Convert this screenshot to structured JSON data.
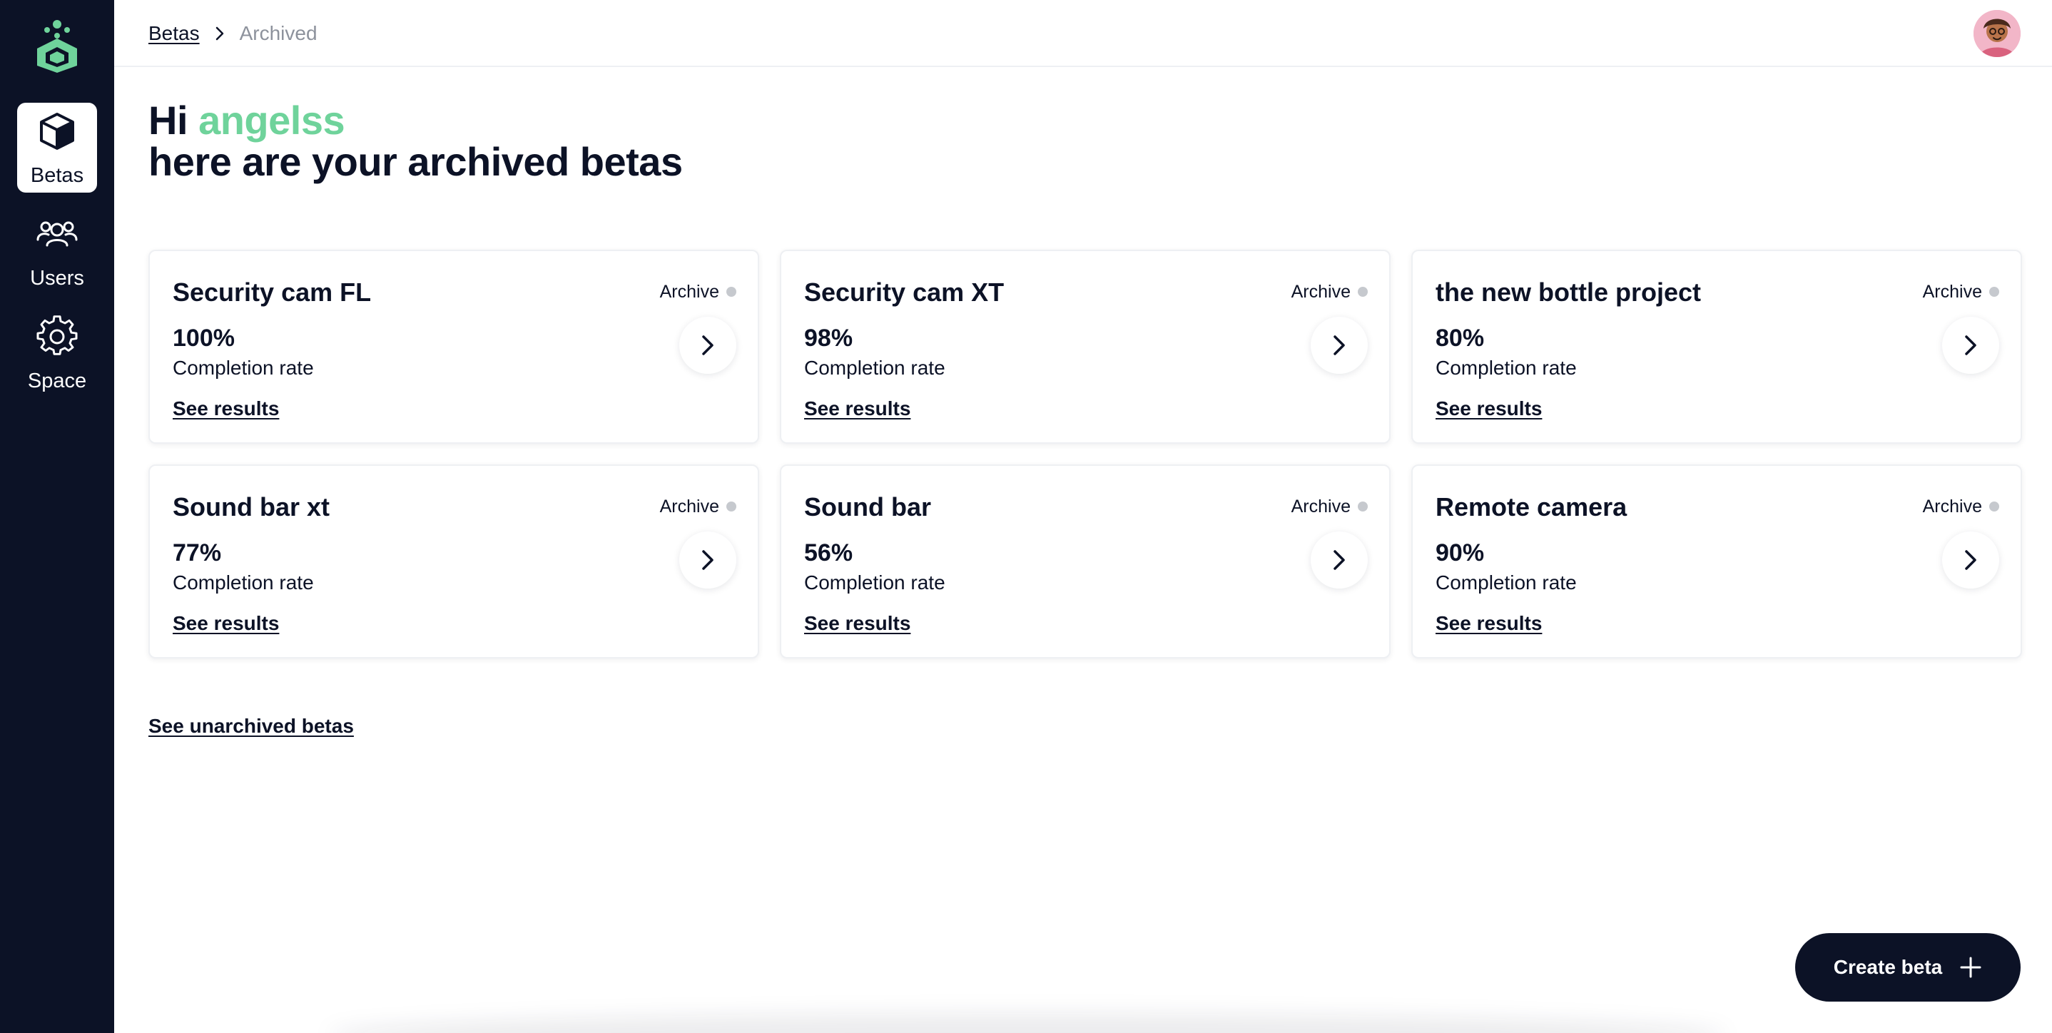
{
  "nav": {
    "items": [
      {
        "label": "Betas",
        "icon": "cube-icon",
        "active": true
      },
      {
        "label": "Users",
        "icon": "users-icon",
        "active": false
      },
      {
        "label": "Space",
        "icon": "gear-icon",
        "active": false
      }
    ]
  },
  "breadcrumb": {
    "root": "Betas",
    "current": "Archived"
  },
  "greeting": {
    "hi": "Hi",
    "username": "angelss",
    "subtitle": "here are your archived betas"
  },
  "cards": [
    {
      "title": "Security cam FL",
      "status": "Archive",
      "rate": "100%",
      "rate_label": "Completion rate",
      "link": "See results"
    },
    {
      "title": "Security cam XT",
      "status": "Archive",
      "rate": "98%",
      "rate_label": "Completion rate",
      "link": "See results"
    },
    {
      "title": "the new bottle project",
      "status": "Archive",
      "rate": "80%",
      "rate_label": "Completion rate",
      "link": "See results"
    },
    {
      "title": "Sound bar xt",
      "status": "Archive",
      "rate": "77%",
      "rate_label": "Completion rate",
      "link": "See results"
    },
    {
      "title": "Sound bar",
      "status": "Archive",
      "rate": "56%",
      "rate_label": "Completion rate",
      "link": "See results"
    },
    {
      "title": "Remote camera",
      "status": "Archive",
      "rate": "90%",
      "rate_label": "Completion rate",
      "link": "See results"
    }
  ],
  "footer_link": "See unarchived betas",
  "create_button": {
    "label": "Create beta",
    "icon": "plus-icon"
  },
  "colors": {
    "sidebar": "#0c1226",
    "accent": "#6fd39b",
    "status_dot": "#c6c9ce"
  }
}
